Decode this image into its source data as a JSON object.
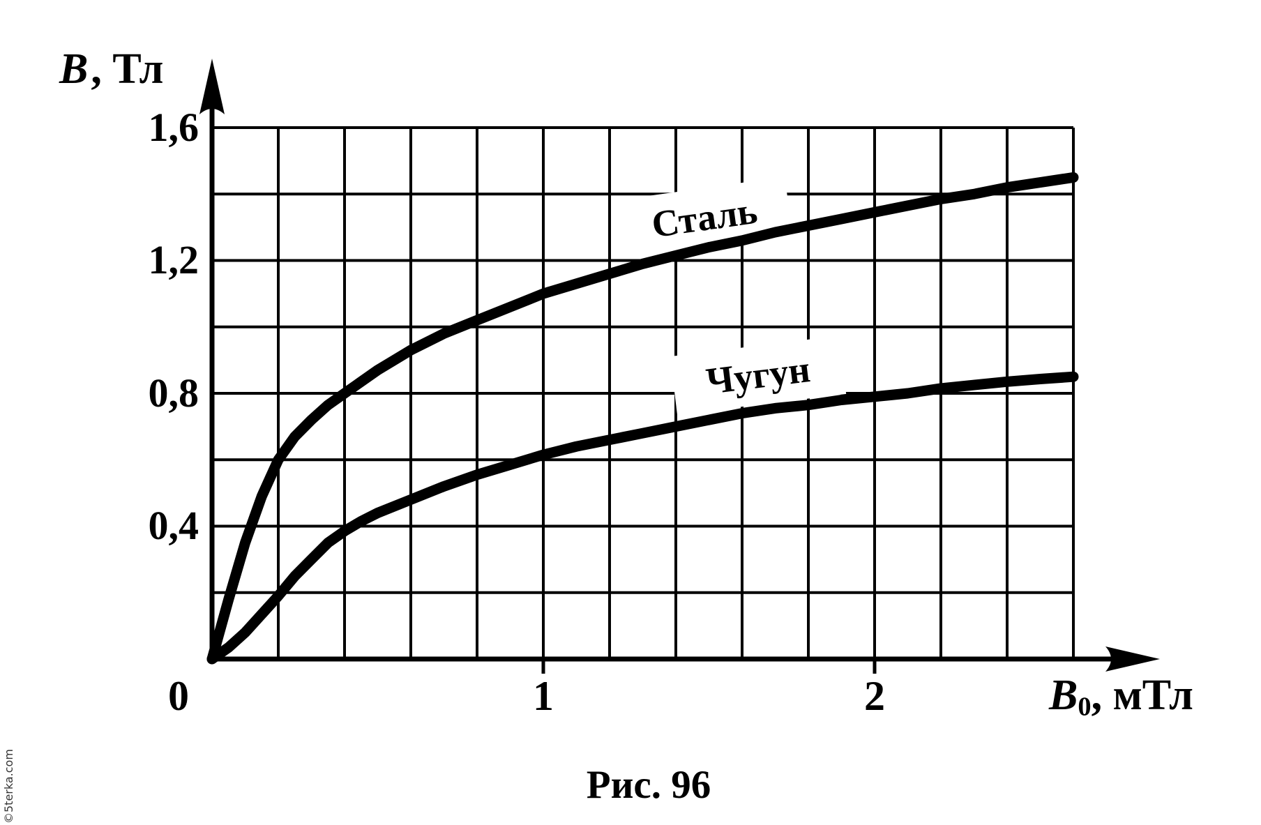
{
  "chart_data": {
    "type": "line",
    "title": "Рис. 96",
    "grid": true,
    "line_color": "#000000",
    "background": "#ffffff",
    "x_axis": {
      "label_main": "B",
      "label_sub": "0",
      "label_unit": ", мТл",
      "range": [
        0,
        2.6
      ],
      "grid_step": 0.2,
      "ticks": [
        {
          "value": 0,
          "label": "0"
        },
        {
          "value": 1,
          "label": "1"
        },
        {
          "value": 2,
          "label": "2"
        }
      ]
    },
    "y_axis": {
      "label_main": "B",
      "label_unit": ", Тл",
      "range": [
        0,
        1.6
      ],
      "grid_step": 0.2,
      "ticks": [
        {
          "value": 1.6,
          "label": "1,6"
        },
        {
          "value": 1.2,
          "label": "1,2"
        },
        {
          "value": 0.8,
          "label": "0,8"
        },
        {
          "value": 0.4,
          "label": "0,4"
        }
      ]
    },
    "series": [
      {
        "name": "Сталь",
        "points": [
          [
            0,
            0
          ],
          [
            0.05,
            0.18
          ],
          [
            0.1,
            0.35
          ],
          [
            0.15,
            0.49
          ],
          [
            0.2,
            0.6
          ],
          [
            0.25,
            0.67
          ],
          [
            0.3,
            0.72
          ],
          [
            0.35,
            0.765
          ],
          [
            0.4,
            0.8
          ],
          [
            0.5,
            0.87
          ],
          [
            0.6,
            0.93
          ],
          [
            0.7,
            0.98
          ],
          [
            0.8,
            1.02
          ],
          [
            0.9,
            1.06
          ],
          [
            1.0,
            1.1
          ],
          [
            1.1,
            1.13
          ],
          [
            1.2,
            1.16
          ],
          [
            1.3,
            1.19
          ],
          [
            1.4,
            1.215
          ],
          [
            1.5,
            1.24
          ],
          [
            1.6,
            1.26
          ],
          [
            1.7,
            1.285
          ],
          [
            1.8,
            1.305
          ],
          [
            1.9,
            1.325
          ],
          [
            2.0,
            1.345
          ],
          [
            2.1,
            1.365
          ],
          [
            2.2,
            1.385
          ],
          [
            2.3,
            1.4
          ],
          [
            2.4,
            1.42
          ],
          [
            2.5,
            1.435
          ],
          [
            2.6,
            1.45
          ]
        ]
      },
      {
        "name": "Чугун",
        "points": [
          [
            0,
            0
          ],
          [
            0.05,
            0.035
          ],
          [
            0.1,
            0.08
          ],
          [
            0.15,
            0.135
          ],
          [
            0.2,
            0.19
          ],
          [
            0.25,
            0.25
          ],
          [
            0.3,
            0.3
          ],
          [
            0.35,
            0.35
          ],
          [
            0.4,
            0.385
          ],
          [
            0.45,
            0.415
          ],
          [
            0.5,
            0.44
          ],
          [
            0.6,
            0.48
          ],
          [
            0.7,
            0.52
          ],
          [
            0.8,
            0.555
          ],
          [
            0.9,
            0.585
          ],
          [
            1.0,
            0.615
          ],
          [
            1.1,
            0.64
          ],
          [
            1.2,
            0.66
          ],
          [
            1.3,
            0.68
          ],
          [
            1.4,
            0.7
          ],
          [
            1.5,
            0.72
          ],
          [
            1.6,
            0.74
          ],
          [
            1.7,
            0.755
          ],
          [
            1.8,
            0.765
          ],
          [
            1.9,
            0.78
          ],
          [
            2.0,
            0.79
          ],
          [
            2.1,
            0.8
          ],
          [
            2.2,
            0.815
          ],
          [
            2.3,
            0.825
          ],
          [
            2.4,
            0.835
          ],
          [
            2.5,
            0.843
          ],
          [
            2.6,
            0.85
          ]
        ]
      }
    ]
  },
  "watermark": "©5terka.com"
}
